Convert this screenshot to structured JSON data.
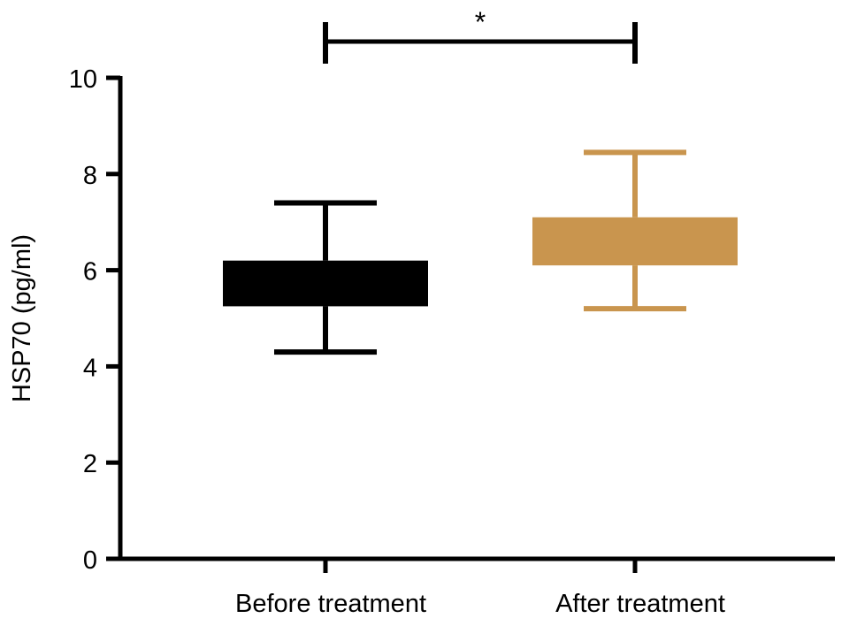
{
  "chart_data": {
    "type": "box",
    "title": "",
    "xlabel": "",
    "ylabel": "HSP70 (pg/ml)",
    "ylim": [
      0,
      10
    ],
    "yticks": [
      0,
      2,
      4,
      6,
      8,
      10
    ],
    "ytick_labels": [
      "0",
      "2",
      "4",
      "6",
      "8",
      "10"
    ],
    "grid": false,
    "legend": "none",
    "categories": [
      "Before treatment",
      "After treatment"
    ],
    "series": [
      {
        "category": "Before treatment",
        "min": 4.3,
        "q1": 5.25,
        "q3": 6.2,
        "max": 7.4,
        "color": "#000000"
      },
      {
        "category": "After treatment",
        "min": 5.2,
        "q1": 6.1,
        "q3": 7.1,
        "max": 8.45,
        "color": "#c9954e"
      }
    ],
    "annotations": [
      {
        "type": "significance",
        "from": "Before treatment",
        "to": "After treatment",
        "label": "*",
        "color": "#000000"
      }
    ]
  }
}
